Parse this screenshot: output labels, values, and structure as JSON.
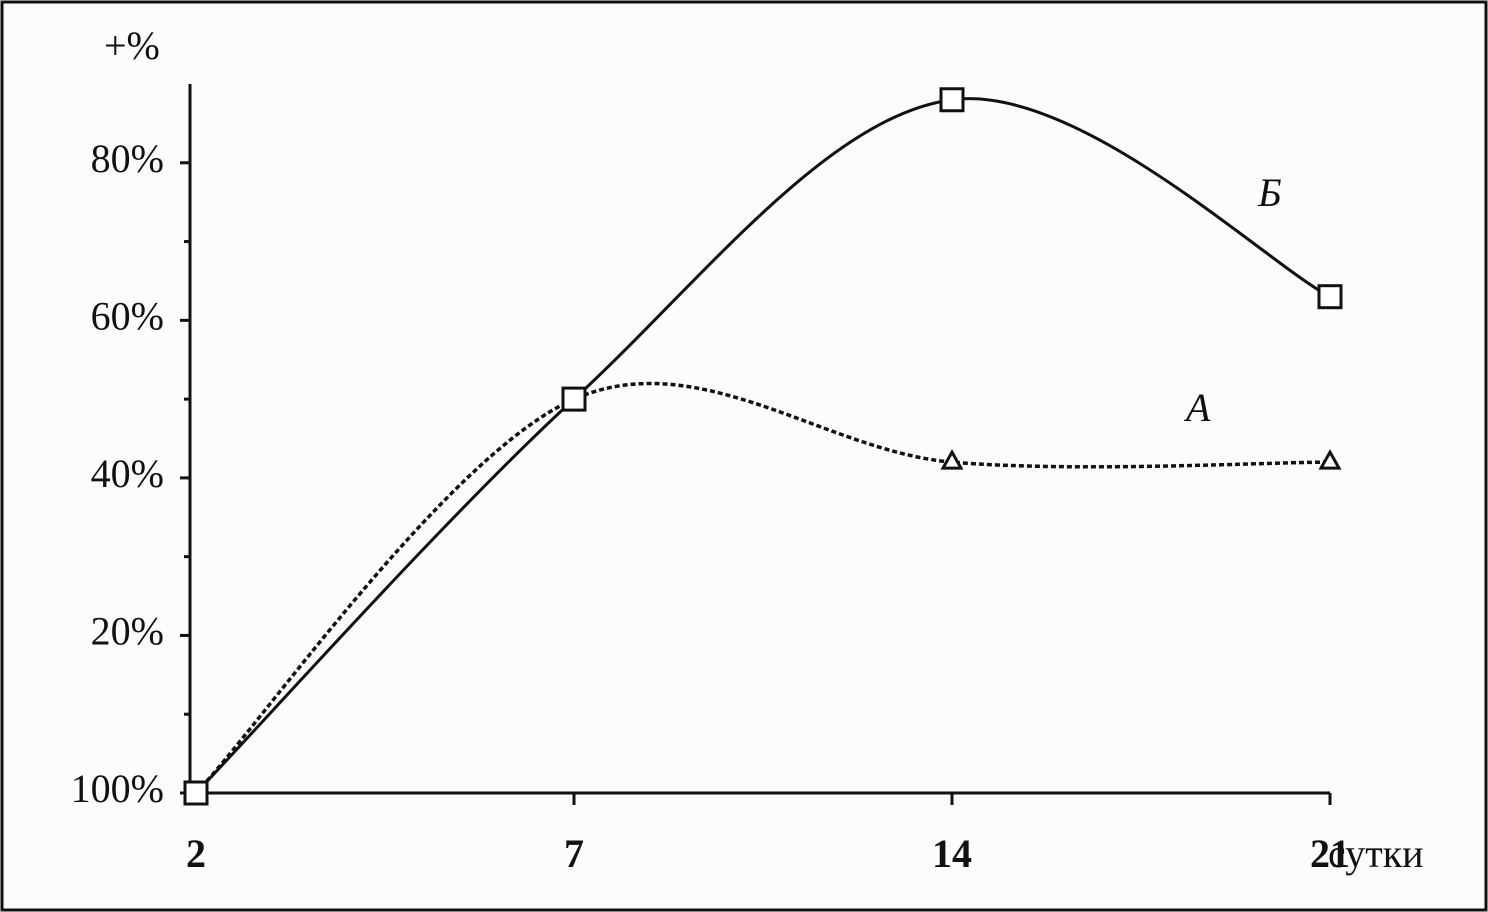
{
  "chart_data": {
    "type": "line",
    "categories": [
      "2",
      "7",
      "14",
      "21"
    ],
    "x_label": "сутки",
    "y_label": "+%",
    "ylim": [
      0,
      90
    ],
    "yticks": [
      {
        "value": 0,
        "label": "100%"
      },
      {
        "value": 20,
        "label": "20%"
      },
      {
        "value": 40,
        "label": "40%"
      },
      {
        "value": 60,
        "label": "60%"
      },
      {
        "value": 80,
        "label": "80%"
      }
    ],
    "yminorticks": [
      10,
      30,
      50,
      70
    ],
    "series": [
      {
        "name": "А",
        "color": "#111111",
        "style": "dotted",
        "marker": "triangle",
        "values": [
          0,
          50,
          42,
          42
        ]
      },
      {
        "name": "Б",
        "color": "#111111",
        "style": "solid",
        "marker": "square",
        "values": [
          0,
          50,
          88,
          63
        ]
      }
    ]
  }
}
